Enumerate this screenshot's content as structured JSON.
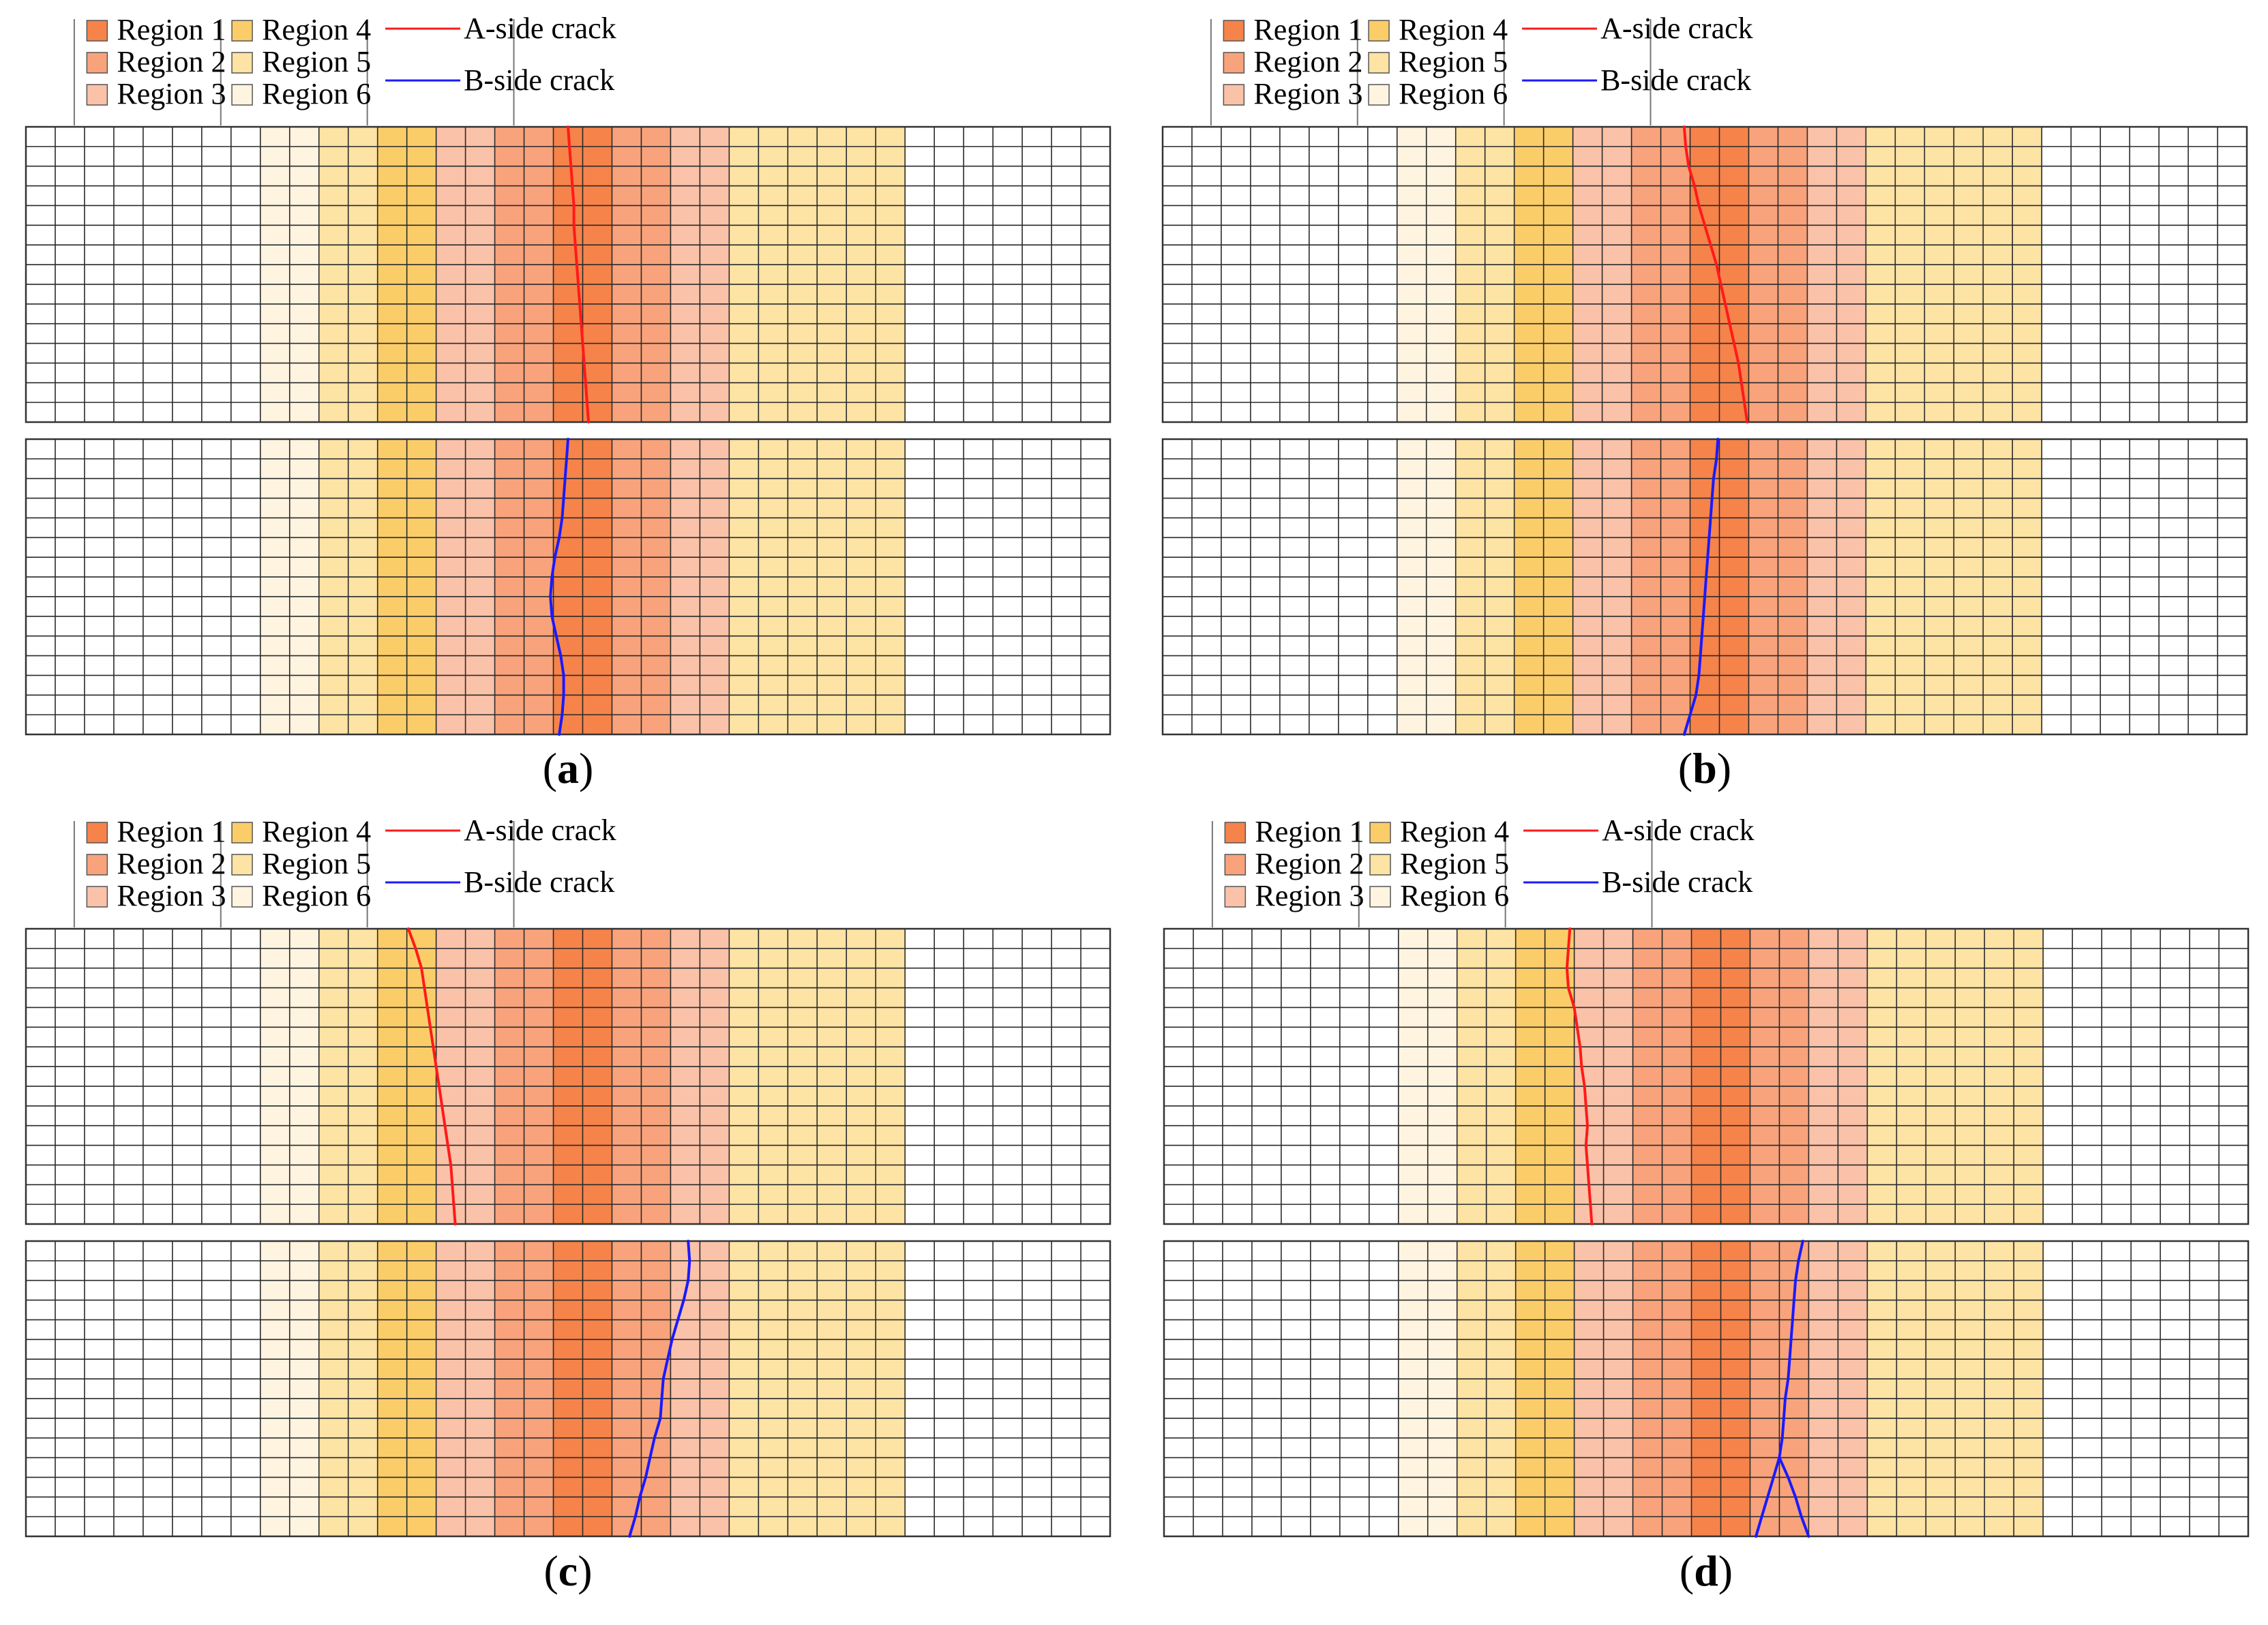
{
  "figure": {
    "regions": [
      {
        "label": "Region 1",
        "color": "#f6834a"
      },
      {
        "label": "Region 2",
        "color": "#f8a37c"
      },
      {
        "label": "Region 3",
        "color": "#fac2a8"
      },
      {
        "label": "Region 4",
        "color": "#fbcd69"
      },
      {
        "label": "Region 5",
        "color": "#fde3a4"
      },
      {
        "label": "Region 6",
        "color": "#fef4e0"
      }
    ],
    "crack_legend": {
      "a_side": {
        "label": "A-side crack",
        "color": "#ff1a1a"
      },
      "b_side": {
        "label": "B-side crack",
        "color": "#1a1aff"
      }
    },
    "grid": {
      "columns": 37,
      "rows": 15
    },
    "region_per_column": [
      0,
      0,
      0,
      0,
      0,
      0,
      0,
      0,
      6,
      6,
      5,
      5,
      4,
      4,
      3,
      3,
      2,
      2,
      1,
      1,
      2,
      2,
      3,
      3,
      5,
      5,
      5,
      5,
      5,
      5,
      0,
      0,
      0,
      0,
      0,
      0,
      0
    ],
    "panels": [
      {
        "id": "a",
        "caption_open": "(",
        "caption_letter": "a",
        "caption_close": ")",
        "a_crack": [
          [
            18.5,
            0
          ],
          [
            18.55,
            1
          ],
          [
            18.6,
            2
          ],
          [
            18.65,
            3
          ],
          [
            18.7,
            4
          ],
          [
            18.7,
            5
          ],
          [
            18.75,
            6
          ],
          [
            18.8,
            7
          ],
          [
            18.85,
            8
          ],
          [
            18.9,
            9
          ],
          [
            18.95,
            10
          ],
          [
            19.0,
            11
          ],
          [
            19.05,
            12
          ],
          [
            19.1,
            13
          ],
          [
            19.15,
            14
          ],
          [
            19.2,
            15
          ]
        ],
        "b_crack": [
          [
            18.5,
            0
          ],
          [
            18.45,
            1
          ],
          [
            18.4,
            2
          ],
          [
            18.35,
            3
          ],
          [
            18.3,
            4
          ],
          [
            18.2,
            5
          ],
          [
            18.05,
            6
          ],
          [
            17.95,
            7
          ],
          [
            17.9,
            8
          ],
          [
            17.95,
            9
          ],
          [
            18.1,
            10
          ],
          [
            18.25,
            11
          ],
          [
            18.35,
            12
          ],
          [
            18.35,
            13
          ],
          [
            18.3,
            14
          ],
          [
            18.2,
            15
          ]
        ]
      },
      {
        "id": "b",
        "caption_open": "(",
        "caption_letter": "b",
        "caption_close": ")",
        "a_crack": [
          [
            17.8,
            0
          ],
          [
            17.85,
            1
          ],
          [
            17.95,
            2
          ],
          [
            18.15,
            3
          ],
          [
            18.3,
            4
          ],
          [
            18.5,
            5
          ],
          [
            18.7,
            6
          ],
          [
            18.9,
            7
          ],
          [
            19.05,
            8
          ],
          [
            19.2,
            9
          ],
          [
            19.35,
            10
          ],
          [
            19.5,
            11
          ],
          [
            19.65,
            12
          ],
          [
            19.75,
            13
          ],
          [
            19.85,
            14
          ],
          [
            19.95,
            15
          ]
        ],
        "b_crack": [
          [
            18.95,
            0
          ],
          [
            18.9,
            1
          ],
          [
            18.8,
            2
          ],
          [
            18.75,
            3
          ],
          [
            18.7,
            4
          ],
          [
            18.65,
            5
          ],
          [
            18.6,
            6
          ],
          [
            18.55,
            7
          ],
          [
            18.5,
            8
          ],
          [
            18.45,
            9
          ],
          [
            18.4,
            10
          ],
          [
            18.35,
            11
          ],
          [
            18.3,
            12
          ],
          [
            18.2,
            13
          ],
          [
            18.0,
            14
          ],
          [
            17.8,
            15
          ]
        ]
      },
      {
        "id": "c",
        "caption_open": "(",
        "caption_letter": "c",
        "caption_close": ")",
        "a_crack": [
          [
            13.05,
            0
          ],
          [
            13.3,
            1
          ],
          [
            13.5,
            2
          ],
          [
            13.6,
            3
          ],
          [
            13.7,
            4
          ],
          [
            13.8,
            5
          ],
          [
            13.9,
            6
          ],
          [
            14.0,
            7
          ],
          [
            14.1,
            8
          ],
          [
            14.2,
            9
          ],
          [
            14.3,
            10
          ],
          [
            14.4,
            11
          ],
          [
            14.5,
            12
          ],
          [
            14.55,
            13
          ],
          [
            14.6,
            14
          ],
          [
            14.65,
            15
          ]
        ],
        "b_crack": [
          [
            22.6,
            0
          ],
          [
            22.65,
            1
          ],
          [
            22.6,
            2
          ],
          [
            22.45,
            3
          ],
          [
            22.25,
            4
          ],
          [
            22.05,
            5
          ],
          [
            21.9,
            6
          ],
          [
            21.75,
            7
          ],
          [
            21.7,
            8
          ],
          [
            21.65,
            9
          ],
          [
            21.45,
            10
          ],
          [
            21.3,
            11
          ],
          [
            21.15,
            12
          ],
          [
            20.95,
            13
          ],
          [
            20.8,
            14
          ],
          [
            20.6,
            15
          ]
        ]
      },
      {
        "id": "d",
        "caption_open": "(",
        "caption_letter": "d",
        "caption_close": ")",
        "a_crack": [
          [
            13.85,
            0
          ],
          [
            13.8,
            1
          ],
          [
            13.75,
            2
          ],
          [
            13.8,
            3
          ],
          [
            14.0,
            4
          ],
          [
            14.1,
            5
          ],
          [
            14.2,
            6
          ],
          [
            14.25,
            7
          ],
          [
            14.35,
            8
          ],
          [
            14.4,
            9
          ],
          [
            14.45,
            10
          ],
          [
            14.4,
            11
          ],
          [
            14.45,
            12
          ],
          [
            14.5,
            13
          ],
          [
            14.55,
            14
          ],
          [
            14.6,
            15
          ]
        ],
        "b_crack": [
          [
            21.8,
            0
          ],
          [
            21.65,
            1
          ],
          [
            21.55,
            2
          ],
          [
            21.5,
            3
          ],
          [
            21.45,
            4
          ],
          [
            21.4,
            5
          ],
          [
            21.35,
            6
          ],
          [
            21.3,
            7
          ],
          [
            21.2,
            8
          ],
          [
            21.15,
            9
          ],
          [
            21.1,
            10
          ],
          [
            21.0,
            11
          ],
          [
            20.8,
            12
          ],
          [
            20.6,
            13
          ],
          [
            20.4,
            14
          ],
          [
            20.2,
            15
          ]
        ],
        "b_crack_branch": [
          [
            21.0,
            11
          ],
          [
            21.3,
            12
          ],
          [
            21.55,
            13
          ],
          [
            21.75,
            14
          ],
          [
            22.0,
            15
          ]
        ]
      }
    ]
  }
}
